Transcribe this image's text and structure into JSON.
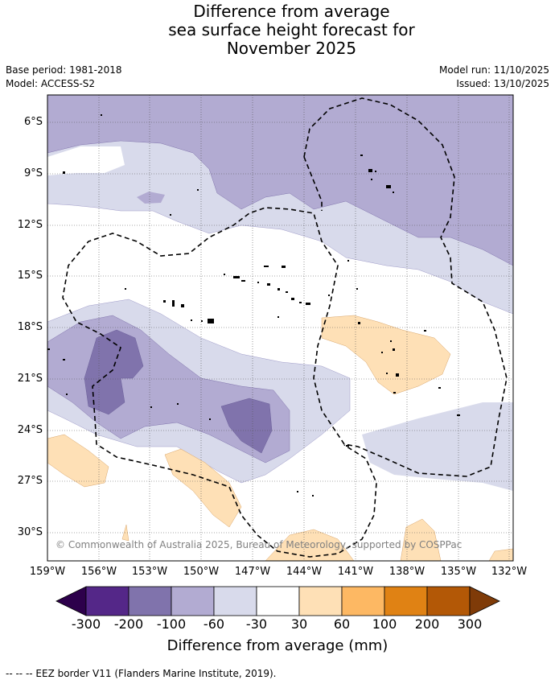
{
  "title_lines": [
    "Difference from average",
    "sea surface height forecast for",
    "November 2025"
  ],
  "meta_left": [
    "Base period: 1981-2018",
    "Model: ACCESS-S2"
  ],
  "meta_right": [
    "Model run: 11/10/2025",
    "Issued: 13/10/2025"
  ],
  "lat_labels": [
    "6°S",
    "9°S",
    "12°S",
    "15°S",
    "18°S",
    "21°S",
    "24°S",
    "27°S",
    "30°S"
  ],
  "lon_labels": [
    "159°W",
    "156°W",
    "153°W",
    "150°W",
    "147°W",
    "144°W",
    "141°W",
    "138°W",
    "135°W",
    "132°W"
  ],
  "copyright": "© Commonwealth of Australia 2025, Bureau of Meteorology, supported by COSPPac",
  "colorbar": {
    "ticks": [
      "-300",
      "-200",
      "-100",
      "-60",
      "-30",
      "30",
      "60",
      "100",
      "200",
      "300"
    ],
    "colors": [
      "#2d004b",
      "#542788",
      "#8073ac",
      "#b2abd2",
      "#d8daeb",
      "#ffffff",
      "#fee0b6",
      "#fdb863",
      "#e08214",
      "#b35806",
      "#7f3b08"
    ],
    "title": "Difference from average (mm)"
  },
  "footer": "--  --  -- EEZ border V11 (Flanders Marine Institute, 2019).",
  "colors": {
    "light_purple": "#d8daeb",
    "mid_purple": "#b2abd2",
    "dark_purple": "#8073ac",
    "light_orange": "#fee0b6"
  }
}
